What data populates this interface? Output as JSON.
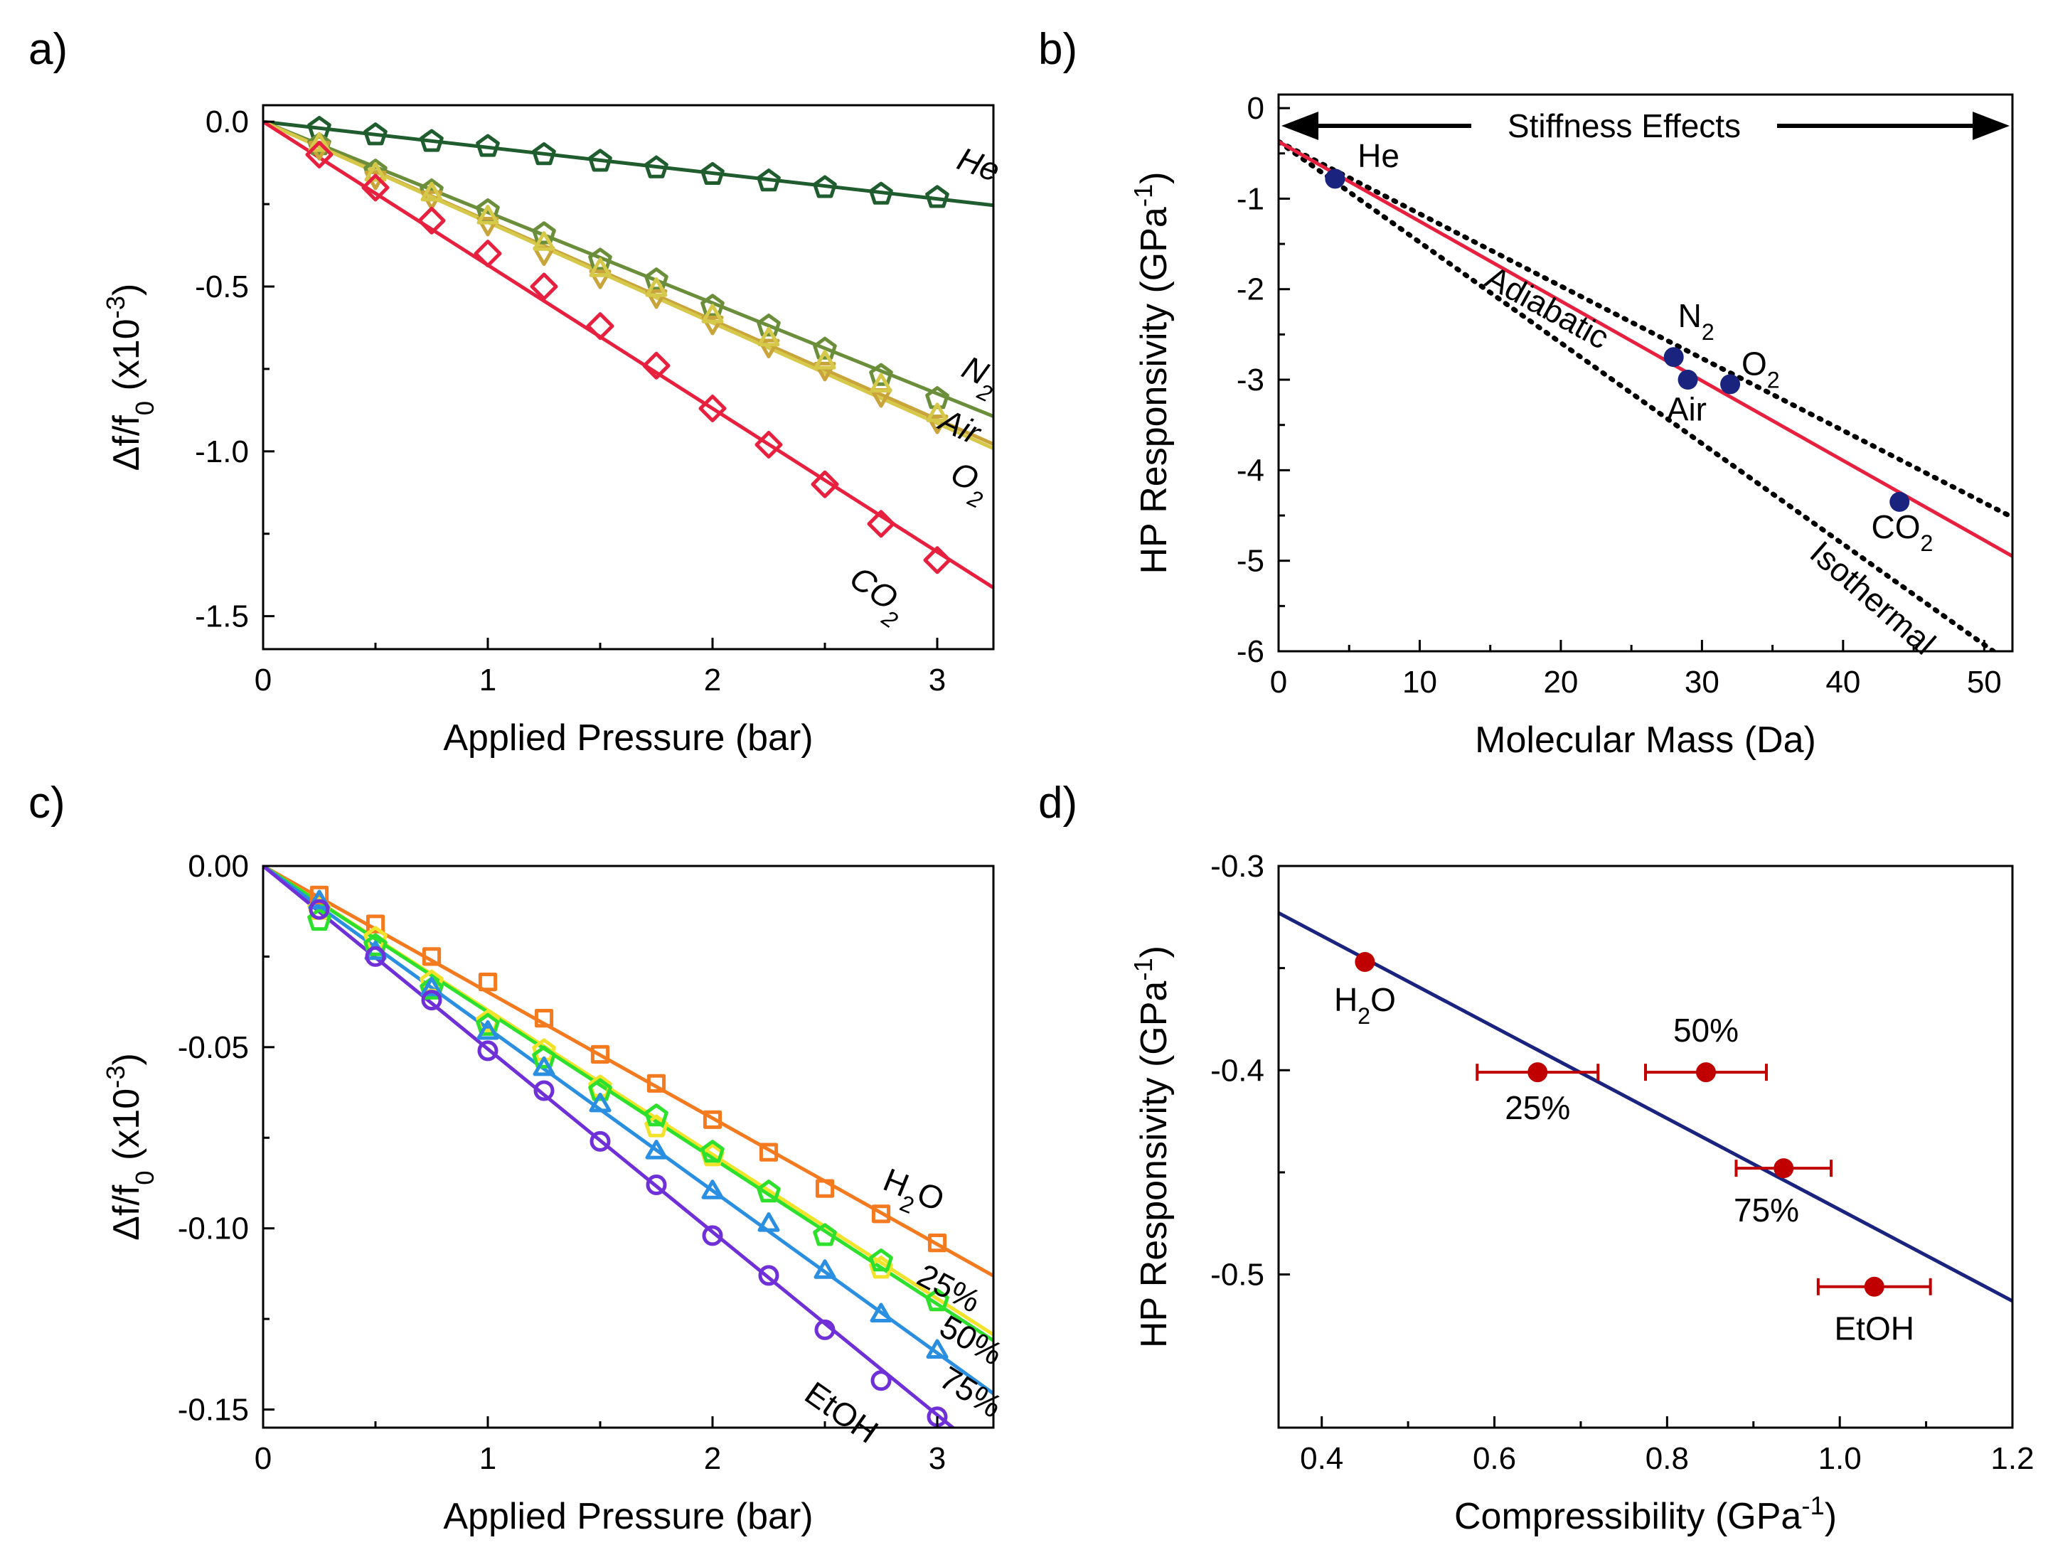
{
  "chart_data": [
    {
      "panel_label": "a)",
      "type": "scatter",
      "xlabel": "Applied Pressure (bar)",
      "ylabel": {
        "main": "Δf/f",
        "sub": "0",
        "rest": " (x10",
        "sup": "-3",
        "close": ")"
      },
      "xlim": [
        0,
        3.25
      ],
      "ylim": [
        -1.6,
        0.05
      ],
      "xticks": [
        "0",
        "1",
        "2",
        "3"
      ],
      "xtick_values": [
        0,
        1,
        2,
        3
      ],
      "yticks": [
        "0.0",
        "-0.5",
        "-1.0",
        "-1.5"
      ],
      "ytick_values": [
        0,
        -0.5,
        -1.0,
        -1.5
      ],
      "x": [
        0.25,
        0.5,
        0.75,
        1.0,
        1.25,
        1.5,
        1.75,
        2.0,
        2.25,
        2.5,
        2.75,
        3.0
      ],
      "series": [
        {
          "name": "He",
          "color": "#1f5c2e",
          "marker": "pentagon",
          "slope": -0.078,
          "values": [
            -0.02,
            -0.04,
            -0.06,
            -0.075,
            -0.1,
            -0.12,
            -0.14,
            -0.16,
            -0.18,
            -0.2,
            -0.22,
            -0.23
          ],
          "label": {
            "text": "He",
            "sub": "",
            "at": [
              3.08,
              -0.14
            ],
            "rot": 20
          }
        },
        {
          "name": "N2",
          "color": "#6b8e3a",
          "marker": "pentagon",
          "slope": -0.275,
          "values": [
            -0.07,
            -0.15,
            -0.21,
            -0.27,
            -0.34,
            -0.42,
            -0.48,
            -0.56,
            -0.62,
            -0.69,
            -0.77,
            -0.84
          ],
          "label": {
            "text": "N",
            "sub": "2",
            "at": [
              3.1,
              -0.77
            ],
            "rot": 25
          }
        },
        {
          "name": "Air",
          "color": "#c9a43a",
          "marker": "triangle-down",
          "slope": -0.301,
          "values": [
            -0.08,
            -0.17,
            -0.23,
            -0.31,
            -0.4,
            -0.47,
            -0.53,
            -0.61,
            -0.68,
            -0.75,
            -0.83,
            -0.91
          ],
          "label": {
            "text": "Air",
            "sub": "",
            "at": [
              3.0,
              -0.93
            ],
            "rot": 25
          }
        },
        {
          "name": "O2",
          "color": "#d6c94a",
          "marker": "triangle-up",
          "slope": -0.305,
          "values": [
            -0.07,
            -0.16,
            -0.22,
            -0.29,
            -0.37,
            -0.45,
            -0.51,
            -0.59,
            -0.66,
            -0.73,
            -0.8,
            -0.89
          ],
          "label": {
            "text": "O",
            "sub": "2",
            "at": [
              3.05,
              -1.09
            ],
            "rot": 25
          }
        },
        {
          "name": "CO2",
          "color": "#e8203f",
          "marker": "diamond",
          "slope": -0.435,
          "values": [
            -0.1,
            -0.2,
            -0.3,
            -0.4,
            -0.5,
            -0.62,
            -0.74,
            -0.87,
            -0.98,
            -1.1,
            -1.22,
            -1.33
          ],
          "label": {
            "text": "CO",
            "sub": "2",
            "at": [
              2.6,
              -1.4
            ],
            "rot": 35
          }
        }
      ]
    },
    {
      "panel_label": "b)",
      "type": "scatter",
      "xlabel": "Molecular Mass (Da)",
      "ylabel": {
        "main": "HP Responsivity (GPa",
        "sup": "-1",
        "close": ")"
      },
      "xlim": [
        0,
        52
      ],
      "ylim": [
        -6,
        0.15
      ],
      "xticks": [
        "0",
        "10",
        "20",
        "30",
        "40",
        "50"
      ],
      "xtick_values": [
        0,
        10,
        20,
        30,
        40,
        50
      ],
      "yticks": [
        "0",
        "-1",
        "-2",
        "-3",
        "-4",
        "-5",
        "-6"
      ],
      "ytick_values": [
        0,
        -1,
        -2,
        -3,
        -4,
        -5,
        -6
      ],
      "annotation": "Stiffness Effects",
      "points": [
        {
          "name": "He",
          "x": 4,
          "y": -0.78,
          "label": "He",
          "sub": "",
          "at": [
            5.6,
            -0.65
          ]
        },
        {
          "name": "N2",
          "x": 28,
          "y": -2.75,
          "label": "N",
          "sub": "2",
          "at": [
            28.3,
            -2.42
          ]
        },
        {
          "name": "Air",
          "x": 29,
          "y": -3.0,
          "label": "Air",
          "sub": "",
          "at": [
            27.5,
            -3.45
          ]
        },
        {
          "name": "O2",
          "x": 32,
          "y": -3.05,
          "label": "O",
          "sub": "2",
          "at": [
            32.8,
            -2.95
          ]
        },
        {
          "name": "CO2",
          "x": 44,
          "y": -4.35,
          "label": "CO",
          "sub": "2",
          "at": [
            42.0,
            -4.75
          ]
        }
      ],
      "point_color": "#1a237e",
      "fit_line": {
        "color": "#e8203f",
        "x": [
          0,
          52
        ],
        "y": [
          -0.37,
          -4.95
        ]
      },
      "model_lines": [
        {
          "name": "Adiabatic",
          "x": [
            0,
            52
          ],
          "y": [
            -0.37,
            -4.52
          ],
          "label_at": [
            14.5,
            -1.95
          ],
          "rot": 29
        },
        {
          "name": "Isothermal",
          "x": [
            0,
            52
          ],
          "y": [
            -0.37,
            -6.15
          ],
          "label_at": [
            37.5,
            -4.95
          ],
          "rot": 41
        }
      ]
    },
    {
      "panel_label": "c)",
      "type": "scatter",
      "xlabel": "Applied Pressure (bar)",
      "ylabel": {
        "main": "Δf/f",
        "sub": "0",
        "rest": " (x10",
        "sup": "-3",
        "close": ")"
      },
      "xlim": [
        0,
        3.25
      ],
      "ylim": [
        -0.155,
        0.0
      ],
      "xticks": [
        "0",
        "1",
        "2",
        "3"
      ],
      "xtick_values": [
        0,
        1,
        2,
        3
      ],
      "yticks": [
        "0.00",
        "-0.05",
        "-0.10",
        "-0.15"
      ],
      "ytick_values": [
        0,
        -0.05,
        -0.1,
        -0.15
      ],
      "x": [
        0.25,
        0.5,
        0.75,
        1.0,
        1.25,
        1.5,
        1.75,
        2.0,
        2.25,
        2.5,
        2.75,
        3.0
      ],
      "series": [
        {
          "name": "H2O",
          "color": "#f47a20",
          "marker": "square",
          "slope": -0.0348,
          "values": [
            -0.008,
            -0.016,
            -0.025,
            -0.032,
            -0.042,
            -0.052,
            -0.06,
            -0.07,
            -0.079,
            -0.089,
            -0.096,
            -0.104
          ],
          "label": {
            "text": "H",
            "sub": "2",
            "text2": "O",
            "at": [
              2.75,
              -0.089
            ],
            "rot": 22
          }
        },
        {
          "name": "25%",
          "color": "#f2e32a",
          "marker": "pentagon",
          "slope": -0.0398,
          "values": [
            -0.012,
            -0.02,
            -0.032,
            -0.043,
            -0.051,
            -0.061,
            -0.072,
            -0.08,
            -0.09,
            -0.102,
            -0.111,
            -0.12
          ],
          "label": {
            "text": "25%",
            "sub": "",
            "at": [
              2.9,
              -0.115
            ],
            "rot": 28
          }
        },
        {
          "name": "50%",
          "color": "#2ee02e",
          "marker": "pentagon",
          "slope": -0.0403,
          "values": [
            -0.015,
            -0.022,
            -0.034,
            -0.044,
            -0.053,
            -0.062,
            -0.069,
            -0.079,
            -0.09,
            -0.102,
            -0.109,
            -0.12
          ],
          "label": {
            "text": "50%",
            "sub": "",
            "at": [
              3.0,
              -0.129
            ],
            "rot": 30
          }
        },
        {
          "name": "75%",
          "color": "#2a8fe0",
          "marker": "triangle-up",
          "slope": -0.0448,
          "values": [
            -0.01,
            -0.024,
            -0.034,
            -0.046,
            -0.056,
            -0.066,
            -0.079,
            -0.09,
            -0.099,
            -0.112,
            -0.124,
            -0.134
          ],
          "label": {
            "text": "75%",
            "sub": "",
            "at": [
              3.0,
              -0.143
            ],
            "rot": 32
          }
        },
        {
          "name": "EtOH",
          "color": "#7030d8",
          "marker": "circle",
          "slope": -0.0505,
          "values": [
            -0.012,
            -0.025,
            -0.037,
            -0.051,
            -0.062,
            -0.076,
            -0.088,
            -0.102,
            -0.113,
            -0.128,
            -0.142,
            -0.152
          ],
          "label": {
            "text": "EtOH",
            "sub": "",
            "at": [
              2.4,
              -0.147
            ],
            "rot": 35
          }
        }
      ]
    },
    {
      "panel_label": "d)",
      "type": "scatter",
      "xlabel": {
        "main": "Compressibility (GPa",
        "sup": "-1",
        "close": ")"
      },
      "ylabel": {
        "main": "HP Responsivity (GPa",
        "sup": "-1",
        "close": ")"
      },
      "xlim": [
        0.35,
        1.2
      ],
      "ylim": [
        -0.575,
        -0.3
      ],
      "xticks": [
        "0.4",
        "0.6",
        "0.8",
        "1.0",
        "1.2"
      ],
      "xtick_values": [
        0.4,
        0.6,
        0.8,
        1.0,
        1.2
      ],
      "yticks": [
        "-0.3",
        "-0.4",
        "-0.5"
      ],
      "ytick_values": [
        -0.3,
        -0.4,
        -0.5
      ],
      "points": [
        {
          "name": "H2O",
          "x": 0.45,
          "y": -0.347,
          "xerr": 0,
          "label": "H",
          "sub": "2",
          "text2": "O",
          "at": [
            0.45,
            -0.371
          ]
        },
        {
          "name": "25%",
          "x": 0.65,
          "y": -0.401,
          "xerr": 0.07,
          "label": "25%",
          "sub": "",
          "at": [
            0.65,
            -0.424
          ]
        },
        {
          "name": "50%",
          "x": 0.845,
          "y": -0.401,
          "xerr": 0.07,
          "label": "50%",
          "sub": "",
          "at": [
            0.845,
            -0.386
          ]
        },
        {
          "name": "75%",
          "x": 0.935,
          "y": -0.448,
          "xerr": 0.055,
          "label": "75%",
          "sub": "",
          "at": [
            0.915,
            -0.474
          ]
        },
        {
          "name": "EtOH",
          "x": 1.04,
          "y": -0.506,
          "xerr": 0.065,
          "label": "EtOH",
          "sub": "",
          "at": [
            1.04,
            -0.532
          ]
        }
      ],
      "point_color": "#c00000",
      "fit_line": {
        "color": "#1a237e",
        "x": [
          0.35,
          1.2
        ],
        "y": [
          -0.323,
          -0.513
        ]
      }
    }
  ]
}
